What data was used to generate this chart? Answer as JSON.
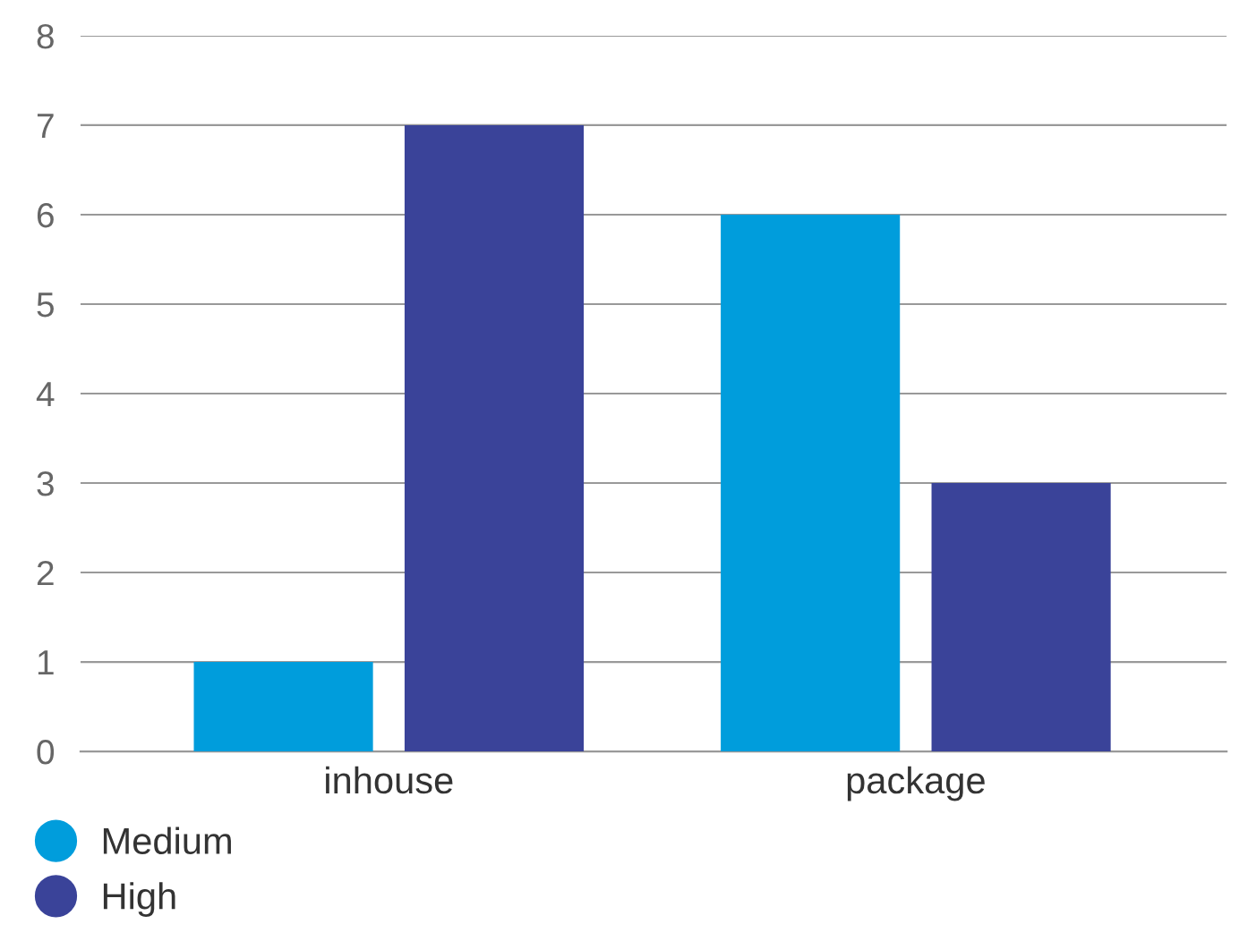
{
  "chart_data": {
    "type": "bar",
    "categories": [
      "inhouse",
      "package"
    ],
    "series": [
      {
        "name": "Medium",
        "color": "#009ddc",
        "values": [
          1,
          6
        ]
      },
      {
        "name": "High",
        "color": "#3a4399",
        "values": [
          7,
          3
        ]
      }
    ],
    "ylim": [
      0,
      8
    ],
    "yticks": [
      0,
      1,
      2,
      3,
      4,
      5,
      6,
      7,
      8
    ],
    "grid": "y",
    "legend": "bottom left"
  }
}
